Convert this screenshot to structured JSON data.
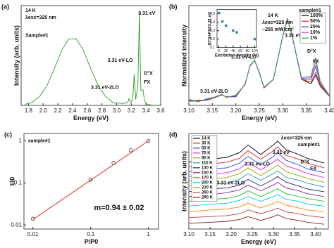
{
  "chart_data": [
    {
      "type": "line",
      "label": "(a)",
      "x_label": "Energy (eV)",
      "y_label": "Intensity (arb. units)",
      "xlim": [
        1.7,
        3.6
      ],
      "ylim": [
        0,
        1.02
      ],
      "xticks": [
        1.8,
        {
          "value": 2,
          "label": "2.0"
        },
        2.2,
        2.4,
        2.6,
        2.8,
        {
          "value": 3,
          "label": "3.0"
        },
        3.2,
        3.4,
        3.6
      ],
      "annotations": [
        "14 K",
        "λexc=325 nm",
        "Sample#1",
        "3.31 eV",
        "3.31 eV-LO",
        "3.31 eV-2LO",
        "D°X",
        "FX"
      ],
      "x": [
        1.75,
        1.85,
        1.95,
        2.05,
        2.15,
        2.25,
        2.35,
        2.45,
        2.55,
        2.65,
        2.75,
        2.85,
        2.95,
        3.05,
        3.1,
        3.15,
        3.17,
        3.19,
        3.22,
        3.24,
        3.26,
        3.29,
        3.31,
        3.33,
        3.36,
        3.38,
        3.42,
        3.5
      ],
      "series": [
        {
          "color": "#2e9a2e",
          "values": [
            0.01,
            0.03,
            0.09,
            0.2,
            0.37,
            0.56,
            0.68,
            0.68,
            0.56,
            0.37,
            0.2,
            0.09,
            0.03,
            0.02,
            0.02,
            0.03,
            0.07,
            0.03,
            0.06,
            0.32,
            0.06,
            0.2,
            0.96,
            0.15,
            0.16,
            0.04,
            0.01,
            0.0
          ]
        }
      ]
    },
    {
      "type": "line",
      "label": "(b)",
      "x_label": "Energy (eV)",
      "y_label": "Normalized intensity",
      "xlim": [
        3.1,
        3.4
      ],
      "ylim": [
        0,
        1.15
      ],
      "xticks": [
        {
          "value": 3.1,
          "label": "3.10"
        },
        3.15,
        {
          "value": 3.2,
          "label": "3.20"
        },
        3.25,
        {
          "value": 3.3,
          "label": "3.30"
        },
        3.35,
        {
          "value": 3.4,
          "label": "3.40"
        }
      ],
      "annotations": [
        "14 K",
        "λexc=325 nm",
        "~255 mW/cm²",
        "sample#1",
        "3.31 eV",
        "3.31 eV-LO",
        "3.31 eV-2LO",
        "D°X",
        "FX"
      ],
      "x": [
        3.1,
        3.12,
        3.14,
        3.16,
        3.17,
        3.18,
        3.2,
        3.22,
        3.23,
        3.24,
        3.25,
        3.26,
        3.28,
        3.3,
        3.31,
        3.32,
        3.34,
        3.36,
        3.37,
        3.38,
        3.4
      ],
      "series": [
        {
          "name": "100%",
          "color": "#000000",
          "values": [
            0.05,
            0.05,
            0.06,
            0.1,
            0.12,
            0.1,
            0.1,
            0.25,
            0.45,
            0.52,
            0.38,
            0.2,
            0.3,
            0.8,
            1.0,
            0.8,
            0.3,
            0.25,
            0.35,
            0.22,
            0.1
          ]
        },
        {
          "name": "50%",
          "color": "#e02020",
          "values": [
            0.05,
            0.06,
            0.06,
            0.1,
            0.12,
            0.1,
            0.1,
            0.25,
            0.45,
            0.52,
            0.38,
            0.2,
            0.3,
            0.8,
            1.0,
            0.8,
            0.3,
            0.27,
            0.38,
            0.23,
            0.1
          ]
        },
        {
          "name": "25%",
          "color": "#2040e0",
          "values": [
            0.05,
            0.05,
            0.07,
            0.1,
            0.12,
            0.1,
            0.1,
            0.25,
            0.45,
            0.52,
            0.38,
            0.2,
            0.3,
            0.8,
            1.0,
            0.8,
            0.3,
            0.3,
            0.45,
            0.25,
            0.1
          ]
        },
        {
          "name": "10%",
          "color": "#d040c0",
          "values": [
            0.06,
            0.05,
            0.06,
            0.11,
            0.12,
            0.1,
            0.11,
            0.25,
            0.45,
            0.52,
            0.38,
            0.2,
            0.3,
            0.8,
            1.0,
            0.8,
            0.31,
            0.32,
            0.5,
            0.26,
            0.1
          ]
        },
        {
          "name": "1%",
          "color": "#30a030",
          "values": [
            0.07,
            0.04,
            0.08,
            0.1,
            0.13,
            0.09,
            0.12,
            0.24,
            0.46,
            0.52,
            0.37,
            0.21,
            0.3,
            0.8,
            1.0,
            0.79,
            0.32,
            0.34,
            0.55,
            0.27,
            0.11
          ]
        }
      ],
      "inset": {
        "type": "scatter",
        "x_label": "Excitation density (%)",
        "y_label": "ID°X+FX/I3.31 eV",
        "xlim": [
          -5,
          105
        ],
        "ylim": [
          0.1,
          0.55
        ],
        "xticks": [
          0,
          20,
          40,
          60,
          80,
          100
        ],
        "yticks": [
          0.1,
          0.2,
          0.3,
          0.4,
          0.5
        ],
        "x": [
          1,
          10,
          20,
          40,
          50,
          100
        ],
        "values": [
          0.51,
          0.41,
          0.36,
          0.3,
          0.28,
          0.2
        ],
        "color": "#2a8aa0"
      }
    },
    {
      "type": "scatter",
      "label": "(c)",
      "x_label": "P/P0",
      "y_label": "I/I0",
      "log": true,
      "xlim": [
        0.007,
        1.5
      ],
      "ylim": [
        0.008,
        1.5
      ],
      "xticks": [
        0.01,
        0.1,
        1
      ],
      "yticks": [
        0.01,
        0.1,
        1
      ],
      "annotations": [
        "sample#1",
        "m=0.94 ± 0.02"
      ],
      "x": [
        0.01,
        0.1,
        0.25,
        0.5,
        1
      ],
      "values": [
        0.014,
        0.12,
        0.3,
        0.6,
        1
      ],
      "color": "#333333",
      "fit": {
        "x": [
          0.01,
          1
        ],
        "values": [
          0.0135,
          1
        ],
        "color": "#e03020"
      }
    },
    {
      "type": "line",
      "label": "(d)",
      "x_label": "Energy (eV)",
      "y_label": "Intensity (arb. units)",
      "xlim": [
        3.1,
        3.43
      ],
      "ylim": [
        0,
        1
      ],
      "xticks": [
        {
          "value": 3.1,
          "label": "3.10"
        },
        3.15,
        {
          "value": 3.2,
          "label": "3.20"
        },
        3.25,
        {
          "value": 3.3,
          "label": "3.30"
        },
        3.35,
        {
          "value": 3.4,
          "label": "3.40"
        }
      ],
      "annotations": [
        "λexc=325 nm",
        "sample#1",
        "3.31 eV",
        "3.31 eV-LO",
        "3.31 eV-2LO",
        "D°X",
        "FX"
      ],
      "x": [
        3.1,
        3.15,
        3.19,
        3.22,
        3.24,
        3.27,
        3.3,
        3.31,
        3.33,
        3.36,
        3.38,
        3.42
      ],
      "series": [
        {
          "name": "14 K",
          "color": "#000000",
          "values": [
            0.7,
            0.73,
            0.75,
            0.8,
            0.88,
            0.78,
            0.88,
            0.92,
            0.83,
            0.78,
            0.74,
            0.69
          ]
        },
        {
          "name": "30 K",
          "color": "#e02020",
          "values": [
            0.65,
            0.68,
            0.7,
            0.74,
            0.82,
            0.73,
            0.82,
            0.86,
            0.77,
            0.73,
            0.69,
            0.64
          ]
        },
        {
          "name": "50 K",
          "color": "#2040e0",
          "values": [
            0.6,
            0.63,
            0.64,
            0.69,
            0.76,
            0.67,
            0.76,
            0.8,
            0.72,
            0.67,
            0.63,
            0.59
          ]
        },
        {
          "name": "70 K",
          "color": "#e020e0",
          "values": [
            0.55,
            0.57,
            0.59,
            0.63,
            0.7,
            0.62,
            0.7,
            0.73,
            0.66,
            0.62,
            0.58,
            0.54
          ]
        },
        {
          "name": "90 K",
          "color": "#a0a000",
          "values": [
            0.5,
            0.52,
            0.54,
            0.58,
            0.64,
            0.56,
            0.64,
            0.67,
            0.6,
            0.56,
            0.53,
            0.49
          ]
        },
        {
          "name": "110 K",
          "color": "#20a0a0",
          "values": [
            0.45,
            0.47,
            0.48,
            0.52,
            0.58,
            0.51,
            0.58,
            0.61,
            0.54,
            0.51,
            0.48,
            0.44
          ]
        },
        {
          "name": "130 K",
          "color": "#202080",
          "values": [
            0.39,
            0.42,
            0.43,
            0.46,
            0.52,
            0.45,
            0.52,
            0.55,
            0.49,
            0.45,
            0.42,
            0.39
          ]
        },
        {
          "name": "150 K",
          "color": "#8020a0",
          "values": [
            0.34,
            0.36,
            0.38,
            0.41,
            0.46,
            0.4,
            0.46,
            0.49,
            0.43,
            0.4,
            0.37,
            0.34
          ]
        },
        {
          "name": "170 K",
          "color": "#20c020",
          "values": [
            0.29,
            0.31,
            0.32,
            0.35,
            0.4,
            0.34,
            0.4,
            0.42,
            0.37,
            0.34,
            0.32,
            0.29
          ]
        },
        {
          "name": "200 K",
          "color": "#00c0ff",
          "values": [
            0.24,
            0.26,
            0.27,
            0.3,
            0.34,
            0.29,
            0.34,
            0.36,
            0.31,
            0.29,
            0.26,
            0.24
          ]
        },
        {
          "name": "230 K",
          "color": "#ff8000",
          "values": [
            0.18,
            0.2,
            0.21,
            0.23,
            0.27,
            0.22,
            0.27,
            0.29,
            0.25,
            0.22,
            0.2,
            0.18
          ]
        },
        {
          "name": "260 K",
          "color": "#c04040",
          "values": [
            0.12,
            0.13,
            0.14,
            0.16,
            0.2,
            0.16,
            0.2,
            0.22,
            0.18,
            0.16,
            0.14,
            0.12
          ]
        },
        {
          "name": "290 K",
          "color": "#802020",
          "values": [
            0.06,
            0.07,
            0.08,
            0.1,
            0.13,
            0.09,
            0.13,
            0.15,
            0.11,
            0.09,
            0.07,
            0.05
          ]
        }
      ]
    }
  ]
}
